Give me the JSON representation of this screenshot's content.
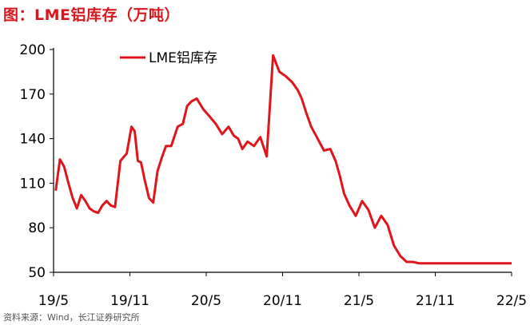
{
  "title": "图：LME铝库存（万吨）",
  "source": "资料来源：Wind，长江证券研究所",
  "colors": {
    "title": "#d9161c",
    "series": "#e0141b",
    "axis": "#000000"
  },
  "chart_data": {
    "type": "line",
    "title": "图：LME铝库存（万吨）",
    "ylim": [
      50,
      200
    ],
    "y_ticks": [
      50,
      80,
      110,
      140,
      170,
      200
    ],
    "x_ticks": [
      "19/5",
      "19/11",
      "20/5",
      "20/11",
      "21/5",
      "21/11",
      "22/5"
    ],
    "x_start": "2019-05",
    "x_end": "2022-05",
    "legend": "top-left",
    "grid": false,
    "series": [
      {
        "name": "LME铝库存",
        "x": [
          "2019-05",
          "2019-05",
          "2019-05",
          "2019-06",
          "2019-06",
          "2019-06",
          "2019-07",
          "2019-07",
          "2019-07",
          "2019-08",
          "2019-08",
          "2019-08",
          "2019-09",
          "2019-09",
          "2019-09",
          "2019-10",
          "2019-10",
          "2019-11",
          "2019-11",
          "2019-11",
          "2019-11",
          "2019-12",
          "2019-12",
          "2019-12",
          "2020-01",
          "2020-01",
          "2020-01",
          "2020-02",
          "2020-02",
          "2020-03",
          "2020-03",
          "2020-03",
          "2020-04",
          "2020-04",
          "2020-05",
          "2020-05",
          "2020-06",
          "2020-06",
          "2020-07",
          "2020-07",
          "2020-07",
          "2020-08",
          "2020-08",
          "2020-09",
          "2020-09",
          "2020-10",
          "2020-10",
          "2020-11",
          "2020-11",
          "2020-12",
          "2020-12",
          "2020-12",
          "2021-01",
          "2021-01",
          "2021-02",
          "2021-02",
          "2021-03",
          "2021-03",
          "2021-03",
          "2021-04",
          "2021-04",
          "2021-05",
          "2021-05",
          "2021-06",
          "2021-06",
          "2021-07",
          "2021-07",
          "2021-08",
          "2021-08",
          "2021-09",
          "2021-09",
          "2021-10",
          "2021-10",
          "2021-11",
          "2021-11",
          "2021-12",
          "2021-12",
          "2022-01",
          "2022-01",
          "2022-02",
          "2022-02",
          "2022-03",
          "2022-03",
          "2022-04",
          "2022-04",
          "2022-05",
          "2022-05"
        ],
        "values": [
          105,
          126,
          121,
          110,
          100,
          93,
          102,
          98,
          93,
          91,
          90,
          95,
          98,
          95,
          94,
          125,
          130,
          148,
          145,
          125,
          124,
          112,
          100,
          97,
          118,
          127,
          135,
          135,
          148,
          150,
          162,
          165,
          167,
          160,
          155,
          150,
          143,
          148,
          142,
          140,
          133,
          138,
          135,
          141,
          128,
          196,
          185,
          182,
          178,
          173,
          167,
          158,
          148,
          140,
          132,
          133,
          125,
          115,
          103,
          95,
          88,
          98,
          92,
          80,
          88,
          82,
          68,
          61,
          57,
          57,
          56,
          56,
          56,
          56,
          56,
          56,
          56,
          56,
          56,
          56,
          56,
          56,
          56,
          56,
          56,
          56,
          56
        ]
      }
    ]
  }
}
